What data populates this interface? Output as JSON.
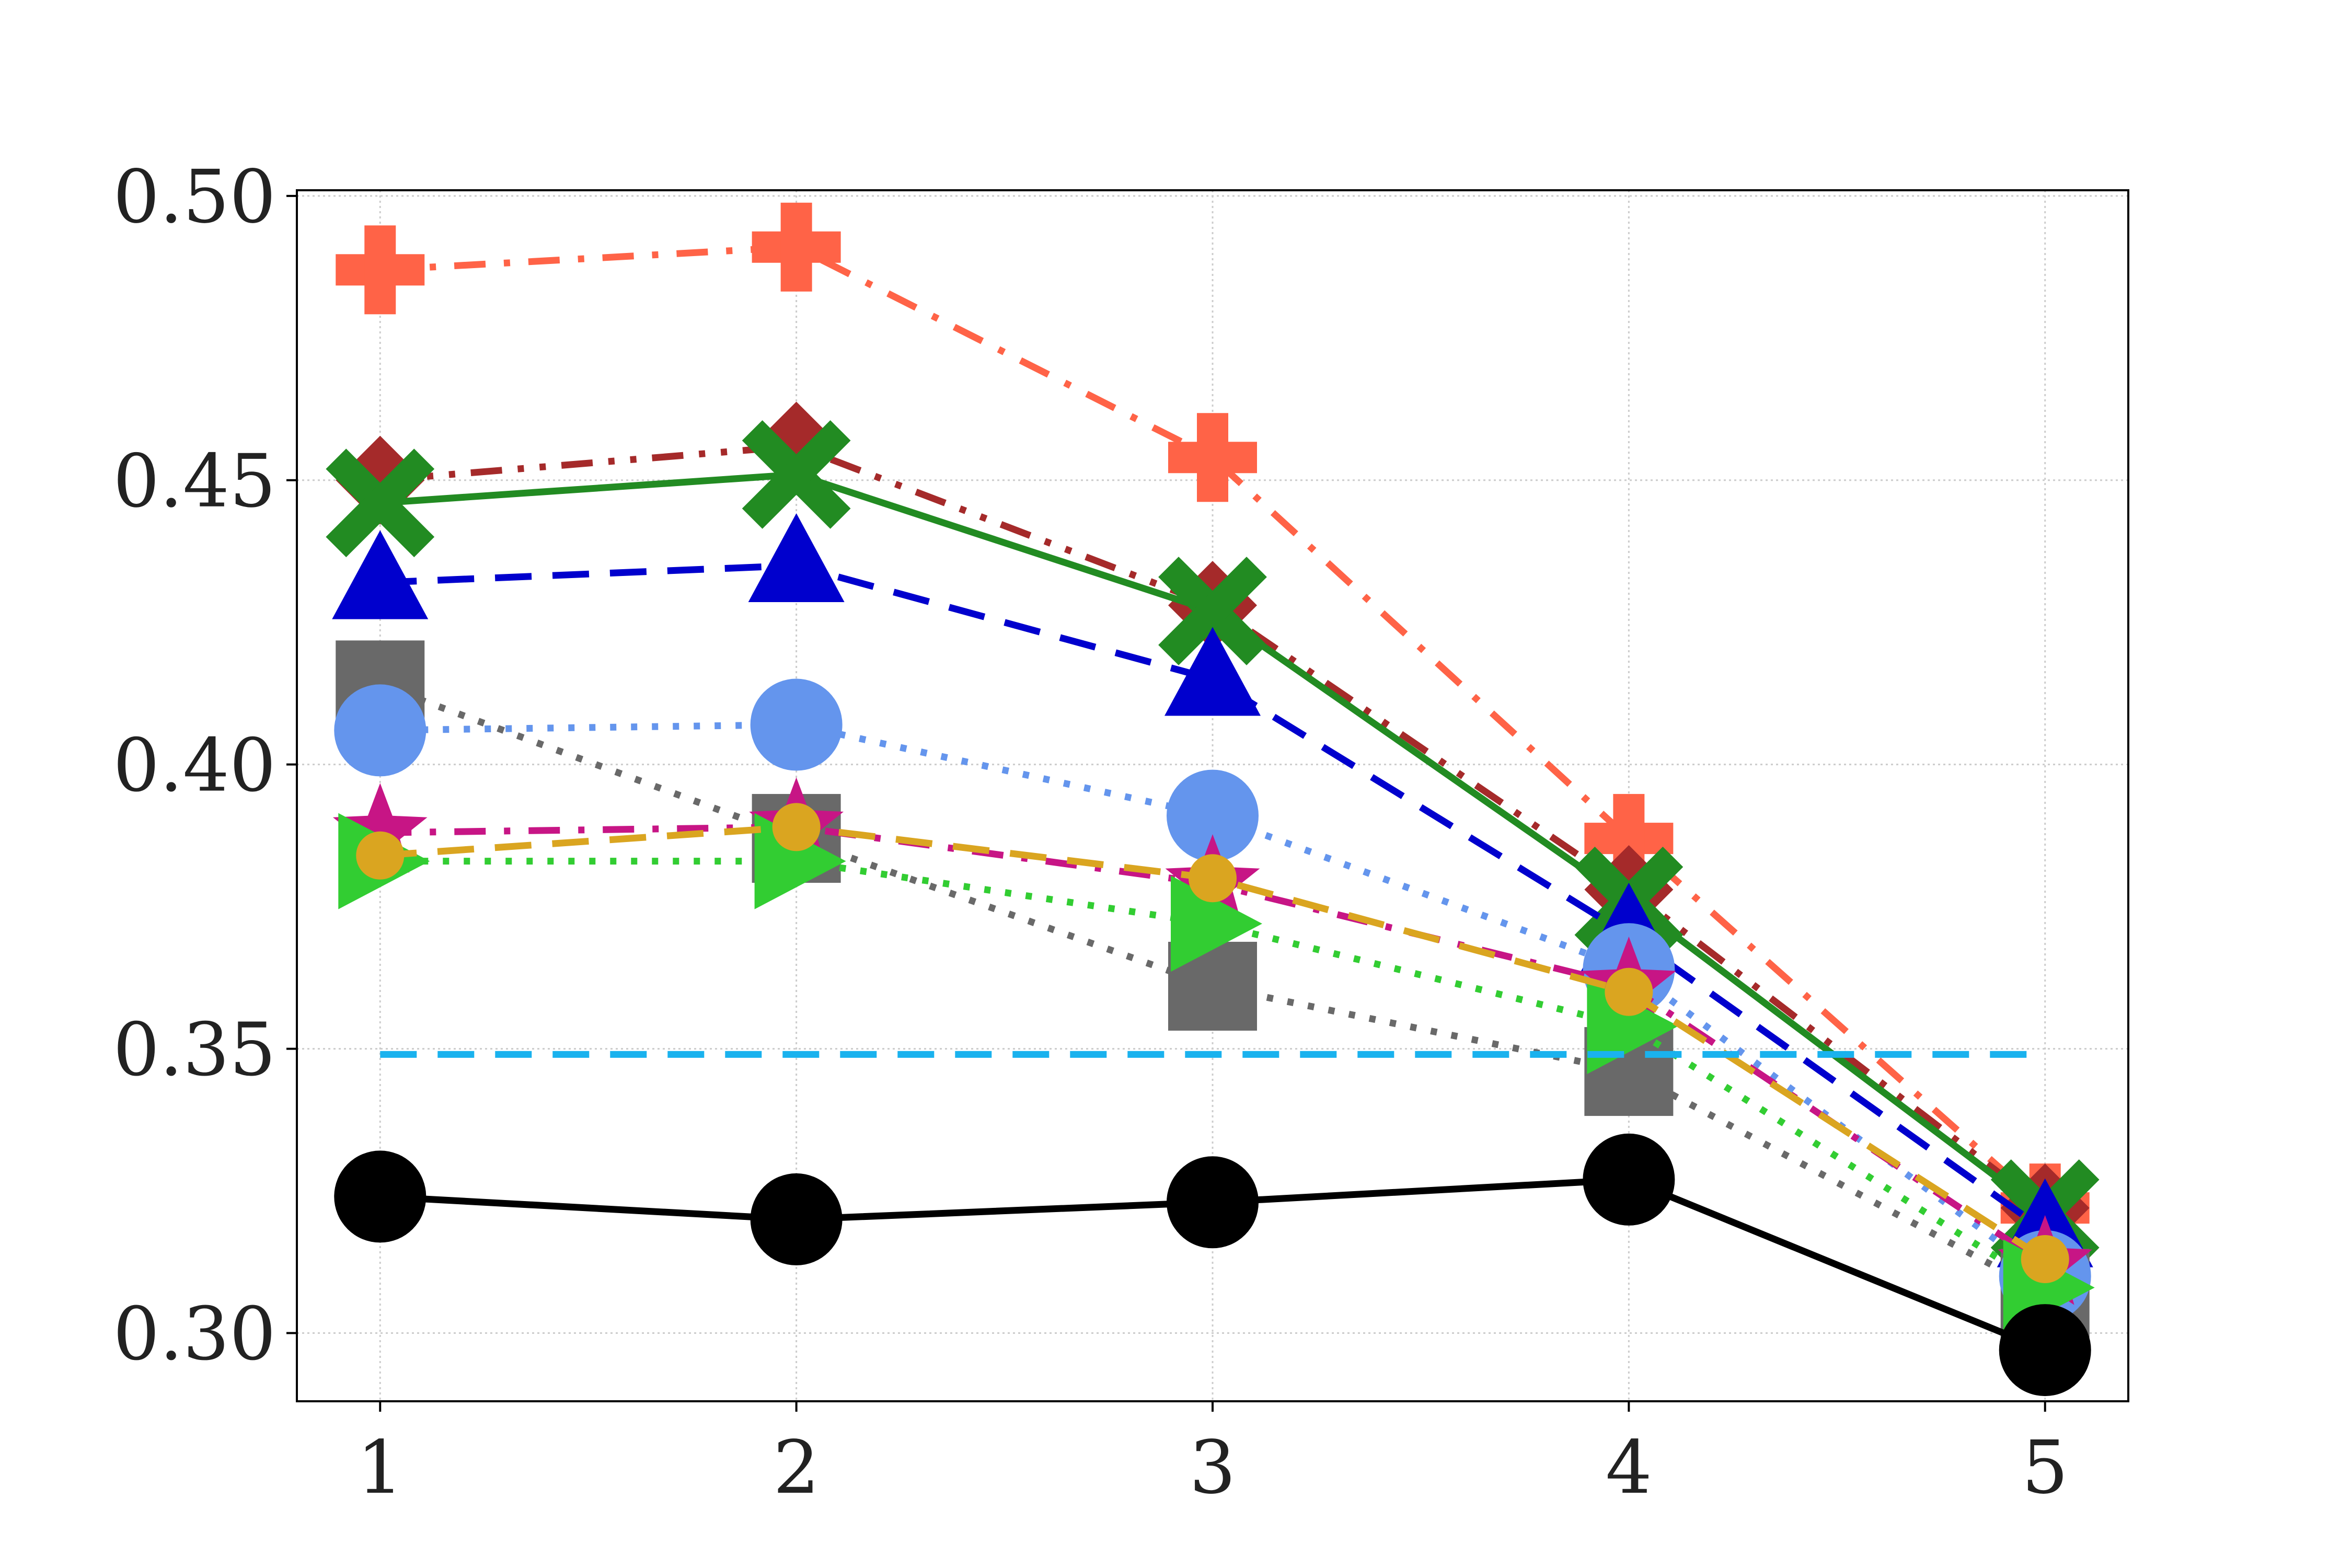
{
  "chart_data": {
    "type": "line",
    "title": "",
    "xlabel": "",
    "ylabel": "",
    "x": [
      1,
      2,
      3,
      4,
      5
    ],
    "xlim": [
      0.8,
      5.2
    ],
    "ylim": [
      0.288,
      0.501
    ],
    "x_ticks": [
      "1",
      "2",
      "3",
      "4",
      "5"
    ],
    "y_ticks": [
      "0.30",
      "0.35",
      "0.40",
      "0.45",
      "0.50"
    ],
    "grid": true,
    "legend": "none",
    "series": [
      {
        "values": [
          0.487,
          0.491,
          0.454,
          0.387,
          0.322
        ],
        "color": "#ff6347",
        "dash": "dashdot",
        "marker": "plus"
      },
      {
        "values": [
          0.45,
          0.456,
          0.428,
          0.378,
          0.322
        ],
        "color": "#a52a2a",
        "dash": "dashdotdot",
        "marker": "diamond"
      },
      {
        "values": [
          0.446,
          0.451,
          0.427,
          0.376,
          0.321
        ],
        "color": "#228b22",
        "dash": "solid",
        "marker": "x"
      },
      {
        "values": [
          0.432,
          0.435,
          0.415,
          0.37,
          0.318
        ],
        "color": "#0000cd",
        "dash": "dashed",
        "marker": "triangle-up"
      },
      {
        "values": [
          0.414,
          0.387,
          0.361,
          0.346,
          0.307
        ],
        "color": "#696969",
        "dash": "dotted",
        "marker": "square"
      },
      {
        "values": [
          0.406,
          0.407,
          0.391,
          0.364,
          0.31
        ],
        "color": "#6495ed",
        "dash": "dotted",
        "marker": "circle"
      },
      {
        "values": [
          0.388,
          0.389,
          0.379,
          0.361,
          0.312
        ],
        "color": "#c71585",
        "dash": "dashdot",
        "marker": "star"
      },
      {
        "values": [
          0.383,
          0.383,
          0.372,
          0.354,
          0.308
        ],
        "color": "#32cd32",
        "dash": "dotted",
        "marker": "triangle-right"
      },
      {
        "values": [
          0.384,
          0.389,
          0.38,
          0.36,
          0.313
        ],
        "color": "#daa520",
        "dash": "dashed",
        "marker": "small-circle"
      },
      {
        "values": [
          0.349,
          0.349,
          0.349,
          0.349,
          0.349
        ],
        "color": "#1ab2ee",
        "dash": "dashed",
        "marker": "none"
      },
      {
        "values": [
          0.324,
          0.32,
          0.323,
          0.327,
          0.297
        ],
        "color": "#000000",
        "dash": "solid",
        "marker": "circle"
      }
    ]
  }
}
